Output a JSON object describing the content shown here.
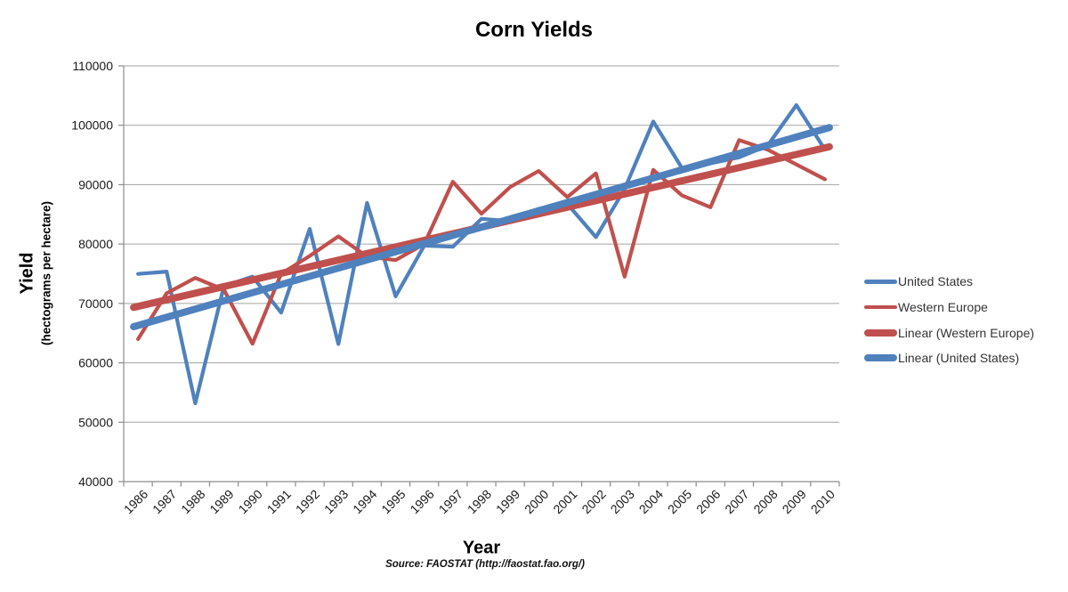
{
  "title": "Corn Yields",
  "y_axis": {
    "title": "Yield",
    "subtitle": "(hectograms per hectare)"
  },
  "x_axis": {
    "title": "Year"
  },
  "source": "Source: FAOSTAT (http://faostat.fao.org/)",
  "chart_data": {
    "type": "line",
    "title": "Corn Yields",
    "xlabel": "Year",
    "ylabel": "Yield (hectograms per hectare)",
    "ylim": [
      40000,
      110000
    ],
    "ytick_step": 10000,
    "grid": "horizontal",
    "legend_position": "right",
    "categories": [
      "1986",
      "1987",
      "1988",
      "1989",
      "1990",
      "1991",
      "1992",
      "1993",
      "1994",
      "1995",
      "1996",
      "1997",
      "1998",
      "1999",
      "2000",
      "2001",
      "2002",
      "2003",
      "2004",
      "2005",
      "2006",
      "2007",
      "2008",
      "2009",
      "2010"
    ],
    "series": [
      {
        "name": "United States",
        "color": "#4F81BD",
        "width": 4.2,
        "values": [
          74967,
          75358,
          53169,
          72923,
          74524,
          68449,
          82551,
          63166,
          86928,
          71190,
          79741,
          79547,
          84244,
          83866,
          85932,
          86748,
          81162,
          89259,
          100629,
          92838,
          93591,
          94595,
          96603,
          103383,
          95913
        ]
      },
      {
        "name": "Western Europe",
        "color": "#C0504D",
        "width": 4.2,
        "values": [
          64000,
          71700,
          74300,
          72300,
          63200,
          75000,
          78000,
          81300,
          77900,
          77300,
          80000,
          90500,
          85100,
          89600,
          92300,
          87900,
          91900,
          74500,
          92500,
          88200,
          86200,
          97500,
          95900,
          93400,
          90900
        ]
      },
      {
        "name": "Linear (Western Europe)",
        "color": "#C0504D",
        "width": 8,
        "trend": [
          69500,
          96200
        ]
      },
      {
        "name": "Linear (United States)",
        "color": "#4F81BD",
        "width": 8,
        "trend": [
          66300,
          99400
        ]
      }
    ],
    "legend_entries": [
      "United States",
      "Western Europe",
      "Linear (Western Europe)",
      "Linear (United States)"
    ]
  }
}
